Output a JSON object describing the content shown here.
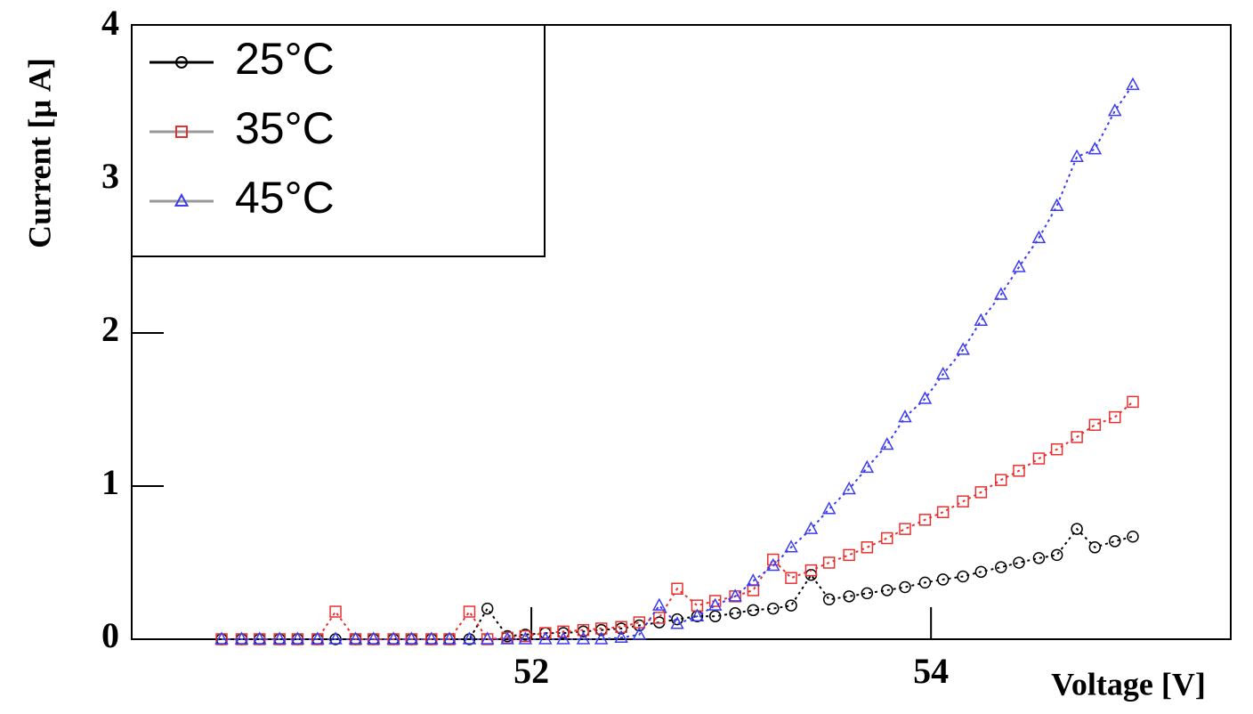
{
  "chart_data": {
    "type": "scatter",
    "x_label": "Voltage [V]",
    "y_label": "Current [μ A]",
    "xlim": [
      50,
      55.5
    ],
    "ylim": [
      0,
      4
    ],
    "xticks": [
      52,
      54
    ],
    "yticks": [
      0,
      1,
      2,
      3,
      4
    ],
    "x": [
      50.45,
      50.55,
      50.64,
      50.74,
      50.83,
      50.93,
      51.02,
      51.12,
      51.21,
      51.31,
      51.4,
      51.5,
      51.59,
      51.69,
      51.78,
      51.88,
      51.97,
      52.07,
      52.16,
      52.26,
      52.35,
      52.45,
      52.54,
      52.64,
      52.73,
      52.83,
      52.92,
      53.02,
      53.11,
      53.21,
      53.3,
      53.4,
      53.49,
      53.59,
      53.68,
      53.78,
      53.87,
      53.97,
      54.06,
      54.16,
      54.25,
      54.35,
      54.44,
      54.54,
      54.63,
      54.73,
      54.82,
      54.92,
      55.01
    ],
    "series": [
      {
        "name": "25°C",
        "color": "#000000",
        "marker": "circle",
        "values": [
          0,
          0,
          0,
          0,
          0,
          0,
          0,
          0,
          0,
          0,
          0,
          0,
          0,
          0,
          0.2,
          0.02,
          0.03,
          0.04,
          0.04,
          0.05,
          0.06,
          0.07,
          0.09,
          0.11,
          0.13,
          0.15,
          0.15,
          0.17,
          0.19,
          0.2,
          0.22,
          0.42,
          0.26,
          0.28,
          0.3,
          0.32,
          0.34,
          0.37,
          0.39,
          0.41,
          0.44,
          0.47,
          0.5,
          0.53,
          0.55,
          0.72,
          0.6,
          0.64,
          0.67
        ]
      },
      {
        "name": "35°C",
        "color": "#e8312f",
        "marker": "square",
        "values": [
          0,
          0,
          0,
          0,
          0,
          0,
          0.18,
          0,
          0,
          0,
          0,
          0,
          0,
          0.18,
          0,
          0.01,
          0.02,
          0.04,
          0.05,
          0.06,
          0.07,
          0.08,
          0.11,
          0.14,
          0.33,
          0.22,
          0.25,
          0.28,
          0.32,
          0.52,
          0.4,
          0.45,
          0.5,
          0.55,
          0.6,
          0.66,
          0.72,
          0.78,
          0.83,
          0.9,
          0.96,
          1.04,
          1.1,
          1.18,
          1.24,
          1.32,
          1.4,
          1.45,
          1.55
        ]
      },
      {
        "name": "45°C",
        "color": "#3b3bf0",
        "marker": "triangle",
        "values": [
          0,
          0,
          0,
          0,
          0,
          0,
          0,
          0,
          0,
          0,
          0,
          0,
          0,
          0,
          0,
          0,
          0,
          0,
          0,
          0,
          0,
          0.01,
          0.03,
          0.22,
          0.1,
          0.15,
          0.22,
          0.28,
          0.38,
          0.48,
          0.6,
          0.72,
          0.85,
          0.98,
          1.12,
          1.27,
          1.45,
          1.57,
          1.73,
          1.89,
          2.08,
          2.25,
          2.43,
          2.62,
          2.83,
          3.15,
          3.2,
          3.45,
          3.62
        ]
      }
    ]
  }
}
